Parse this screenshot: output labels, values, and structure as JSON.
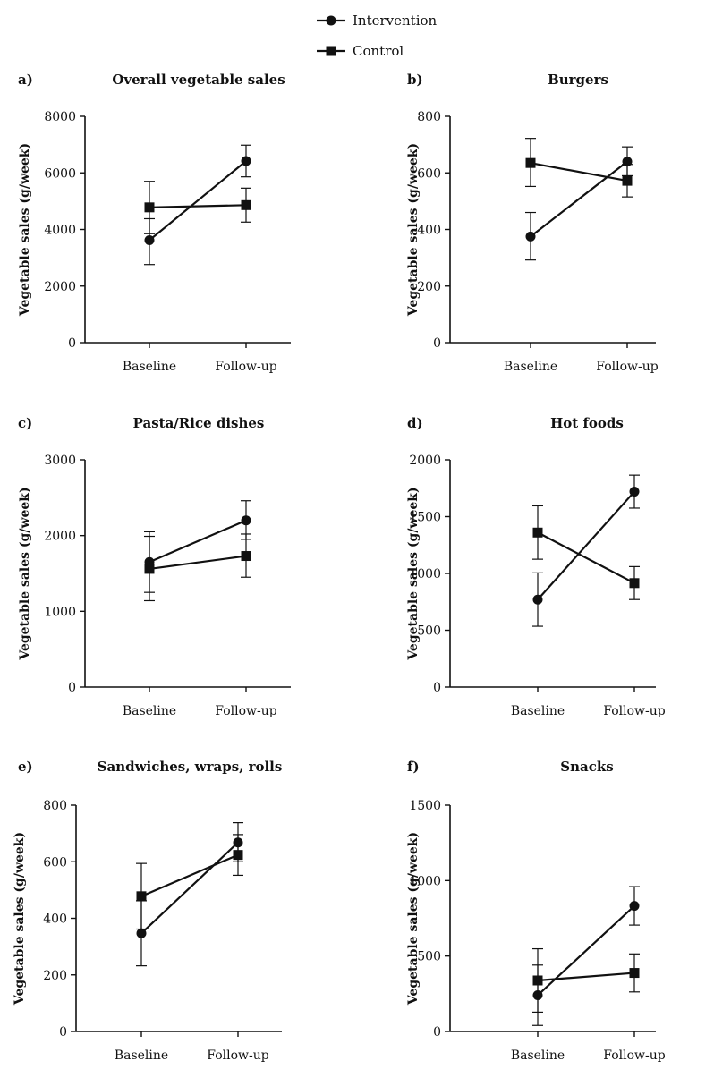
{
  "legend": {
    "intervention": "Intervention",
    "control": "Control"
  },
  "style": {
    "line_color": "#111111"
  },
  "chart_data": [
    {
      "type": "line",
      "panel": "a)",
      "title": "Overall vegetable sales",
      "ylabel": "Vegetable sales (g/week)",
      "categories": [
        "Baseline",
        "Follow-up"
      ],
      "ylim": [
        0,
        8000
      ],
      "yticks": [
        0,
        2000,
        4000,
        6000,
        8000
      ],
      "series": [
        {
          "name": "Intervention",
          "marker": "circle",
          "values": [
            3620,
            6420
          ],
          "err_low": [
            2760,
            5860
          ],
          "err_high": [
            4380,
            6980
          ]
        },
        {
          "name": "Control",
          "marker": "square",
          "values": [
            4780,
            4860
          ],
          "err_low": [
            3850,
            4260
          ],
          "err_high": [
            5700,
            5460
          ]
        }
      ]
    },
    {
      "type": "line",
      "panel": "b)",
      "title": "Burgers",
      "ylabel": "Vegetable sales (g/week)",
      "categories": [
        "Baseline",
        "Follow-up"
      ],
      "ylim": [
        0,
        800
      ],
      "yticks": [
        0,
        200,
        400,
        600,
        800
      ],
      "series": [
        {
          "name": "Intervention",
          "marker": "circle",
          "values": [
            375,
            640
          ],
          "err_low": [
            292,
            590
          ],
          "err_high": [
            460,
            692
          ]
        },
        {
          "name": "Control",
          "marker": "square",
          "values": [
            635,
            572
          ],
          "err_low": [
            552,
            515
          ],
          "err_high": [
            722,
            630
          ]
        }
      ]
    },
    {
      "type": "line",
      "panel": "c)",
      "title": "Pasta/Rice dishes",
      "ylabel": "Vegetable sales (g/week)",
      "categories": [
        "Baseline",
        "Follow-up"
      ],
      "ylim": [
        0,
        3000
      ],
      "yticks": [
        0,
        1000,
        2000,
        3000
      ],
      "series": [
        {
          "name": "Intervention",
          "marker": "circle",
          "values": [
            1650,
            2200
          ],
          "err_low": [
            1250,
            1950
          ],
          "err_high": [
            2050,
            2460
          ]
        },
        {
          "name": "Control",
          "marker": "square",
          "values": [
            1560,
            1730
          ],
          "err_low": [
            1140,
            1450
          ],
          "err_high": [
            1990,
            2020
          ]
        }
      ]
    },
    {
      "type": "line",
      "panel": "d)",
      "title": "Hot foods",
      "ylabel": "Vegetable sales (g/week)",
      "categories": [
        "Baseline",
        "Follow-up"
      ],
      "ylim": [
        0,
        2000
      ],
      "yticks": [
        0,
        500,
        1000,
        1500,
        2000
      ],
      "series": [
        {
          "name": "Intervention",
          "marker": "circle",
          "values": [
            770,
            1720
          ],
          "err_low": [
            535,
            1575
          ],
          "err_high": [
            1005,
            1865
          ]
        },
        {
          "name": "Control",
          "marker": "square",
          "values": [
            1360,
            915
          ],
          "err_low": [
            1125,
            770
          ],
          "err_high": [
            1595,
            1060
          ]
        }
      ]
    },
    {
      "type": "line",
      "panel": "e)",
      "title": "Sandwiches, wraps, rolls",
      "ylabel": "Vegetable sales (g/week)",
      "categories": [
        "Baseline",
        "Follow-up"
      ],
      "ylim": [
        0,
        800
      ],
      "yticks": [
        0,
        200,
        400,
        600,
        800
      ],
      "series": [
        {
          "name": "Intervention",
          "marker": "circle",
          "values": [
            347,
            668
          ],
          "err_low": [
            232,
            600
          ],
          "err_high": [
            462,
            738
          ]
        },
        {
          "name": "Control",
          "marker": "square",
          "values": [
            478,
            624
          ],
          "err_low": [
            362,
            552
          ],
          "err_high": [
            594,
            696
          ]
        }
      ]
    },
    {
      "type": "line",
      "panel": "f)",
      "title": "Snacks",
      "ylabel": "Vegetable sales (g/week)",
      "categories": [
        "Baseline",
        "Follow-up"
      ],
      "ylim": [
        0,
        1500
      ],
      "yticks": [
        0,
        500,
        1000,
        1500
      ],
      "series": [
        {
          "name": "Intervention",
          "marker": "circle",
          "values": [
            240,
            832
          ],
          "err_low": [
            40,
            705
          ],
          "err_high": [
            440,
            960
          ]
        },
        {
          "name": "Control",
          "marker": "square",
          "values": [
            338,
            388
          ],
          "err_low": [
            128,
            262
          ],
          "err_high": [
            548,
            514
          ]
        }
      ]
    }
  ]
}
